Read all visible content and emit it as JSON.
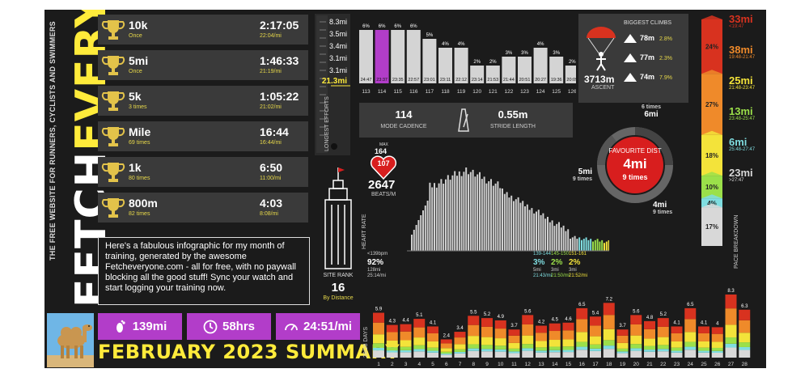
{
  "brand": {
    "name_white": "FETCH",
    "name_yellow": "EVERYONE",
    "tagline": "THE FREE WEBSITE FOR RUNNERS, CYCLISTS AND SWIMMERS"
  },
  "best_efforts": [
    {
      "name": "10k",
      "sub": "Once",
      "time": "2:17:05",
      "pace": "22:04/mi"
    },
    {
      "name": "5mi",
      "sub": "Once",
      "time": "1:46:33",
      "pace": "21:19/mi"
    },
    {
      "name": "5k",
      "sub": "3 times",
      "time": "1:05:22",
      "pace": "21:02/mi"
    },
    {
      "name": "Mile",
      "sub": "69 times",
      "time": "16:44",
      "pace": "16:44/mi"
    },
    {
      "name": "1k",
      "sub": "80 times",
      "time": "6:50",
      "pace": "11:00/mi"
    },
    {
      "name": "800m",
      "sub": "82 times",
      "time": "4:03",
      "pace": "8:08/mi"
    }
  ],
  "blurb": "Here's a fabulous infographic for my month of training, generated by the awesome Fetcheveryone.com - all for free, with no paywall blocking all the good stuff! Sync your watch and start logging your training now.",
  "summary": {
    "distance": "139mi",
    "time": "58hrs",
    "pace": "24:51/mi",
    "title": "FEBRUARY 2023 SUMMARY"
  },
  "longest_efforts": {
    "label": "LONGEST EFFORTS",
    "values": [
      "8.3mi",
      "3.5mi",
      "3.4mi",
      "3.1mi",
      "3.1mi"
    ],
    "highlight": "21.3mi"
  },
  "weekly_pct": {
    "weeks": [
      "113",
      "114",
      "115",
      "116",
      "117",
      "118",
      "119",
      "120",
      "121",
      "122",
      "123",
      "124",
      "125",
      "126"
    ],
    "pct": [
      6,
      6,
      6,
      6,
      5,
      4,
      4,
      2,
      2,
      3,
      3,
      4,
      3,
      2
    ],
    "times": [
      "24:47",
      "23:37",
      "23:35",
      "22:57",
      "23:01",
      "23:11",
      "22:12",
      "23:14",
      "21:53",
      "21:44",
      "20:51",
      "20:27",
      "19:36",
      "20:09"
    ],
    "highlight_index": 1
  },
  "cadence": {
    "value": "114",
    "label": "MODE CADENCE",
    "stride": "0.55m",
    "stride_label": "STRIDE LENGTH"
  },
  "climbs": {
    "title": "BIGGEST CLIMBS",
    "rows": [
      {
        "h": "78m",
        "pct": "2.8%"
      },
      {
        "h": "77m",
        "pct": "2.3%"
      },
      {
        "h": "74m",
        "pct": "7.9%"
      }
    ],
    "ascent": "3713m",
    "ascent_label": "ASCENT"
  },
  "favourite": {
    "label": "FAVOURITE DIST",
    "dist": "4mi",
    "times": "9 times",
    "top_dist": "6mi",
    "top_times": "6 times",
    "left_dist": "5mi",
    "left_times": "9 times",
    "bottom_dist": "4mi",
    "bottom_times": "9 times"
  },
  "heart": {
    "max_label": "MAX",
    "max": "164",
    "avg": "107",
    "beats": "2647",
    "beats_label": "BEATS/M",
    "axis": "HEART RATE",
    "zones": [
      {
        "range": "<139bpm",
        "pct": "92%",
        "dist": "128mi",
        "pace": "25:14/mi"
      },
      {
        "range": "139-144",
        "pct": "3%",
        "dist": "5mi",
        "pace": "21:43/mi"
      },
      {
        "range": "145-150",
        "pct": "2%",
        "dist": "3mi",
        "pace": "21:50/mi"
      },
      {
        "range": "151-161",
        "pct": "2%",
        "dist": "3mi",
        "pace": "21:52/mi"
      }
    ]
  },
  "site_rank": {
    "label": "SITE RANK",
    "value": "16",
    "sub": "By Distance"
  },
  "pace_breakdown": {
    "label": "PACE BREAKDOWN",
    "segments": [
      {
        "pct": "24%",
        "color": "#d8321f",
        "dist": "33mi",
        "range": "<19:47"
      },
      {
        "pct": "27%",
        "color": "#ef8a2a",
        "dist": "38mi",
        "range": "19:48-21:47"
      },
      {
        "pct": "18%",
        "color": "#f3e33a",
        "dist": "25mi",
        "range": "21:48-23:47"
      },
      {
        "pct": "10%",
        "color": "#9be04a",
        "dist": "13mi",
        "range": "23:48-25:47"
      },
      {
        "pct": "4%",
        "color": "#7fdde0",
        "dist": "6mi",
        "range": "25:48-27:47"
      },
      {
        "pct": "17%",
        "color": "#d8d8d8",
        "dist": "23mi",
        "range": ">27:47"
      }
    ]
  },
  "daily": {
    "axis": "28/28 DAYS",
    "days": [
      "1",
      "2",
      "3",
      "4",
      "5",
      "6",
      "7",
      "8",
      "9",
      "10",
      "11",
      "12",
      "13",
      "14",
      "15",
      "16",
      "17",
      "18",
      "19",
      "20",
      "21",
      "22",
      "23",
      "24",
      "25",
      "26",
      "27",
      "28"
    ],
    "values": [
      5.9,
      4.3,
      4.4,
      5.1,
      4.1,
      2.4,
      3.4,
      5.5,
      5.2,
      4.9,
      3.7,
      5.6,
      4.2,
      4.5,
      4.6,
      6.5,
      5.4,
      7.2,
      3.7,
      5.6,
      4.8,
      5.2,
      4.1,
      6.5,
      4.1,
      4,
      8.3,
      6.3
    ],
    "labels": [
      "5.9",
      "4.3",
      "4.4",
      "5.1",
      "4.1",
      "2.4",
      "3.4",
      "5.5",
      "5.2",
      "4.9",
      "3.7",
      "5.6",
      "4.2",
      "4.5",
      "4.6",
      "6.5",
      "5.4",
      "7.2",
      "3.7",
      "5.6",
      "4.8",
      "5.2",
      "4.1",
      "6.5",
      "4.1",
      "4",
      "8.3",
      "6.3"
    ]
  }
}
